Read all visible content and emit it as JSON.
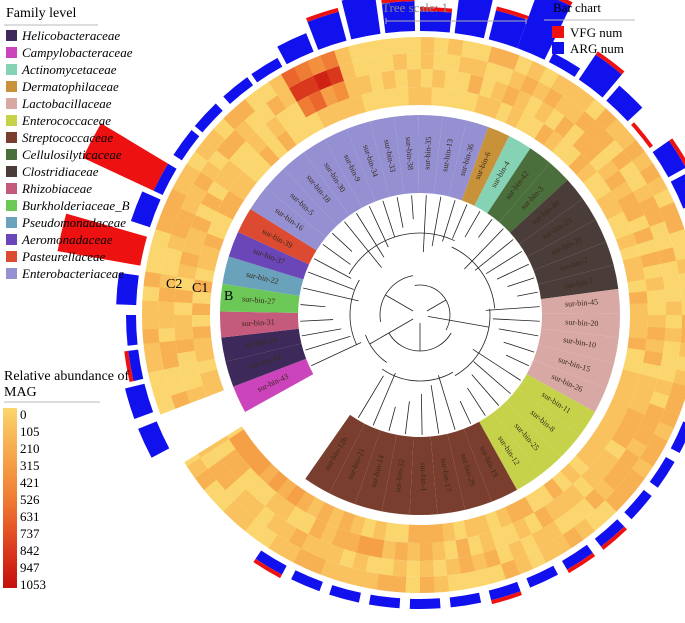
{
  "chart_data": {
    "type": "circular-phylogenetic-tree-with-heatmap-and-bar-chart",
    "family_legend": {
      "title": "Family level",
      "entries": [
        {
          "name": "Helicobacteraceae",
          "color": "#3d2a5a"
        },
        {
          "name": "Campylobacteraceae",
          "color": "#cc44bb"
        },
        {
          "name": "Actinomycetaceae",
          "color": "#86d2b4"
        },
        {
          "name": "Dermatophilaceae",
          "color": "#c8923a"
        },
        {
          "name": "Lactobacillaceae",
          "color": "#d8a8a4"
        },
        {
          "name": "Enterococcaceae",
          "color": "#c6d24a"
        },
        {
          "name": "Streptococcaceae",
          "color": "#7a3e2e"
        },
        {
          "name": "Cellulosilyticaceae",
          "color": "#4a6e3c"
        },
        {
          "name": "Clostridiaceae",
          "color": "#4a3c38"
        },
        {
          "name": "Rhizobiaceae",
          "color": "#c45a7c"
        },
        {
          "name": "Burkholderiaceae_B",
          "color": "#6cc856"
        },
        {
          "name": "Pseudomonadaceae",
          "color": "#6aa2bc"
        },
        {
          "name": "Aeromonadaceae",
          "color": "#6a46b8"
        },
        {
          "name": "Pasteurellaceae",
          "color": "#dc4a32"
        },
        {
          "name": "Enterobacteriaceae",
          "color": "#9490d2"
        }
      ]
    },
    "abundance_legend": {
      "title_line1": "Relative abundance of",
      "title_line2": "MAG",
      "levels": [
        "0",
        "105",
        "210",
        "315",
        "421",
        "526",
        "631",
        "737",
        "842",
        "947",
        "1053"
      ],
      "colors": [
        "#fbd66e",
        "#f9c25e",
        "#f7b152",
        "#f5a047",
        "#f38f3d",
        "#ef7c34",
        "#ea662c",
        "#e24f24",
        "#d9381c",
        "#cf2214",
        "#c5100c"
      ]
    },
    "bar_legend": {
      "title": "Bar chart",
      "entries": [
        {
          "name": "VFG num",
          "color": "#ee1111"
        },
        {
          "name": "ARG num",
          "color": "#1111ee"
        }
      ]
    },
    "tree_scale": "Tree scale: 1",
    "ring_labels": [
      "C2",
      "C1",
      "B"
    ],
    "bins": [
      {
        "label": "sur-bin-43",
        "family": "Campylobacteraceae",
        "angle": 245,
        "vfg": 0,
        "arg": 2
      },
      {
        "label": "sur-bin-44",
        "family": "Helicobacteraceae",
        "angle": 253,
        "vfg": 0,
        "arg": 2
      },
      {
        "label": "sur-bin-24",
        "family": "Helicobacteraceae",
        "angle": 260,
        "vfg": 1,
        "arg": 1
      },
      {
        "label": "sur-bin-31",
        "family": "Rhizobiaceae",
        "angle": 267,
        "vfg": 0,
        "arg": 1
      },
      {
        "label": "sur-bin-27",
        "family": "Burkholderiaceae_B",
        "angle": 275,
        "vfg": 0,
        "arg": 2
      },
      {
        "label": "sur-bin-22",
        "family": "Pseudomonadaceae",
        "angle": 283,
        "vfg": 14,
        "arg": 0
      },
      {
        "label": "sur-bin-37",
        "family": "Aeromonadaceae",
        "angle": 291,
        "vfg": 0,
        "arg": 2
      },
      {
        "label": "sur-bin-39",
        "family": "Pasteurellaceae",
        "angle": 298,
        "vfg": 13,
        "arg": 1
      },
      {
        "label": "sur-bin-16",
        "family": "Enterobacteriaceae",
        "angle": 306,
        "vfg": 0,
        "arg": 1
      },
      {
        "label": "sur-bin-5",
        "family": "Enterobacteriaceae",
        "angle": 313,
        "vfg": 0,
        "arg": 1
      },
      {
        "label": "sur-bin-18",
        "family": "Enterobacteriaceae",
        "angle": 321,
        "vfg": 0,
        "arg": 1
      },
      {
        "label": "sur-bin-30",
        "family": "Enterobacteriaceae",
        "angle": 328,
        "vfg": 0,
        "arg": 1
      },
      {
        "label": "sur-bin-9",
        "family": "Enterobacteriaceae",
        "angle": 335,
        "vfg": 0,
        "arg": 2
      },
      {
        "label": "sur-bin-34",
        "family": "Enterobacteriaceae",
        "angle": 342,
        "vfg": 1,
        "arg": 3
      },
      {
        "label": "sur-bin-33",
        "family": "Enterobacteriaceae",
        "angle": 349,
        "vfg": 0,
        "arg": 4
      },
      {
        "label": "sur-bin-38",
        "family": "Enterobacteriaceae",
        "angle": 356,
        "vfg": 1,
        "arg": 3
      },
      {
        "label": "sur-bin-35",
        "family": "Enterobacteriaceae",
        "angle": 3,
        "vfg": 1,
        "arg": 2
      },
      {
        "label": "sur-bin-13",
        "family": "Enterobacteriaceae",
        "angle": 10,
        "vfg": 1,
        "arg": 4
      },
      {
        "label": "sur-bin-36",
        "family": "Enterobacteriaceae",
        "angle": 17,
        "vfg": 1,
        "arg": 3
      },
      {
        "label": "sur-bin-6",
        "family": "Dermatophilaceae",
        "angle": 23,
        "vfg": 1,
        "arg": 6
      },
      {
        "label": "sur-bin-4",
        "family": "Actinomycetaceae",
        "angle": 30,
        "vfg": 0,
        "arg": 1
      },
      {
        "label": "sur-bin-42",
        "family": "Cellulosilyticaceae",
        "angle": 37,
        "vfg": 1,
        "arg": 3
      },
      {
        "label": "sur-bin-3",
        "family": "Cellulosilyticaceae",
        "angle": 44,
        "vfg": 0,
        "arg": 2
      },
      {
        "label": "sur-bin-40",
        "family": "Clostridiaceae",
        "angle": 51,
        "vfg": 1,
        "arg": 0
      },
      {
        "label": "sur-bin-23",
        "family": "Clostridiaceae",
        "angle": 58,
        "vfg": 1,
        "arg": 2
      },
      {
        "label": "sur-bin-28",
        "family": "Clostridiaceae",
        "angle": 65,
        "vfg": 0,
        "arg": 2
      },
      {
        "label": "sur-bin-2",
        "family": "Clostridiaceae",
        "angle": 72,
        "vfg": 0,
        "arg": 2
      },
      {
        "label": "sur-bin-7",
        "family": "Clostridiaceae",
        "angle": 79,
        "vfg": 1,
        "arg": 2
      },
      {
        "label": "sur-bin-45",
        "family": "Lactobacillaceae",
        "angle": 86,
        "vfg": 0,
        "arg": 2
      },
      {
        "label": "sur-bin-20",
        "family": "Lactobacillaceae",
        "angle": 93,
        "vfg": 0,
        "arg": 1
      },
      {
        "label": "sur-bin-10",
        "family": "Lactobacillaceae",
        "angle": 100,
        "vfg": 0,
        "arg": 1
      },
      {
        "label": "sur-bin-15",
        "family": "Lactobacillaceae",
        "angle": 108,
        "vfg": 1,
        "arg": 1
      },
      {
        "label": "sur-bin-26",
        "family": "Lactobacillaceae",
        "angle": 115,
        "vfg": 0,
        "arg": 1
      },
      {
        "label": "sur-bin-11",
        "family": "Enterococcaceae",
        "angle": 123,
        "vfg": 0,
        "arg": 1
      },
      {
        "label": "sur-bin-8",
        "family": "Enterococcaceae",
        "angle": 131,
        "vfg": 0,
        "arg": 1
      },
      {
        "label": "sur-bin-25",
        "family": "Enterococcaceae",
        "angle": 139,
        "vfg": 1,
        "arg": 1
      },
      {
        "label": "sur-bin-12",
        "family": "Enterococcaceae",
        "angle": 147,
        "vfg": 1,
        "arg": 1
      },
      {
        "label": "sur-bin-19",
        "family": "Streptococcaceae",
        "angle": 155,
        "vfg": 0,
        "arg": 1
      },
      {
        "label": "sur-bin-29",
        "family": "Streptococcaceae",
        "angle": 163,
        "vfg": 1,
        "arg": 1
      },
      {
        "label": "sur-bin-17",
        "family": "Streptococcaceae",
        "angle": 171,
        "vfg": 0,
        "arg": 1
      },
      {
        "label": "sur-bin-1",
        "family": "Streptococcaceae",
        "angle": 179,
        "vfg": 0,
        "arg": 1
      },
      {
        "label": "sur-bin-32",
        "family": "Streptococcaceae",
        "angle": 187,
        "vfg": 0,
        "arg": 1
      },
      {
        "label": "sur-bin-14",
        "family": "Streptococcaceae",
        "angle": 195,
        "vfg": 0,
        "arg": 1
      },
      {
        "label": "sur-bin-21",
        "family": "Streptococcaceae",
        "angle": 203,
        "vfg": 0,
        "arg": 1
      },
      {
        "label": "sur-bin-12b",
        "family": "Streptococcaceae",
        "angle": 211,
        "vfg": 1,
        "arg": 1
      }
    ]
  }
}
